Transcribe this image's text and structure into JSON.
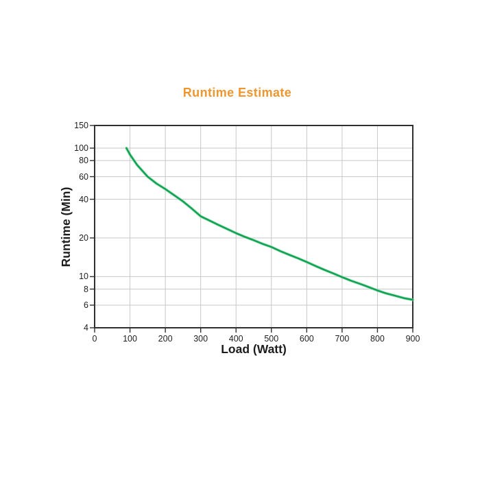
{
  "page": {
    "background": "#FFFFFF"
  },
  "chart_data": {
    "type": "line",
    "title": "Runtime Estimate",
    "xlabel": "Load (Watt)",
    "ylabel": "Runtime (Min)",
    "x_axis": {
      "min": 0,
      "max": 900,
      "scale": "linear",
      "ticks": [
        0,
        100,
        200,
        300,
        400,
        500,
        600,
        700,
        800,
        900
      ]
    },
    "y_axis": {
      "min": 4,
      "max": 150,
      "scale": "log",
      "ticks": [
        150,
        100,
        80,
        60,
        40,
        20,
        10,
        8,
        6,
        4
      ]
    },
    "grid": true,
    "legend": "none",
    "series": [
      {
        "name": "runtime-estimate-curve",
        "color": "#10A353",
        "points": [
          [
            90,
            100
          ],
          [
            100,
            89
          ],
          [
            120,
            74
          ],
          [
            150,
            60
          ],
          [
            175,
            53
          ],
          [
            200,
            48
          ],
          [
            225,
            43
          ],
          [
            250,
            38.5
          ],
          [
            275,
            33.8
          ],
          [
            300,
            29.5
          ],
          [
            325,
            27.3
          ],
          [
            350,
            25.3
          ],
          [
            375,
            23.5
          ],
          [
            400,
            21.8
          ],
          [
            425,
            20.4
          ],
          [
            450,
            19.2
          ],
          [
            475,
            18.0
          ],
          [
            500,
            17.0
          ],
          [
            525,
            15.8
          ],
          [
            550,
            14.8
          ],
          [
            575,
            13.9
          ],
          [
            600,
            13.0
          ],
          [
            625,
            12.1
          ],
          [
            650,
            11.3
          ],
          [
            675,
            10.6
          ],
          [
            700,
            9.9
          ],
          [
            725,
            9.3
          ],
          [
            750,
            8.8
          ],
          [
            775,
            8.3
          ],
          [
            800,
            7.8
          ],
          [
            825,
            7.4
          ],
          [
            850,
            7.1
          ],
          [
            875,
            6.8
          ],
          [
            900,
            6.6
          ]
        ]
      }
    ],
    "colors": {
      "title": "#EF962F",
      "axis": "#2F2F2F",
      "grid": "#C7C7C7",
      "tick_text": "#1E1E1E",
      "curve": "#10A353",
      "curve_halo": "#93D7AF"
    }
  }
}
